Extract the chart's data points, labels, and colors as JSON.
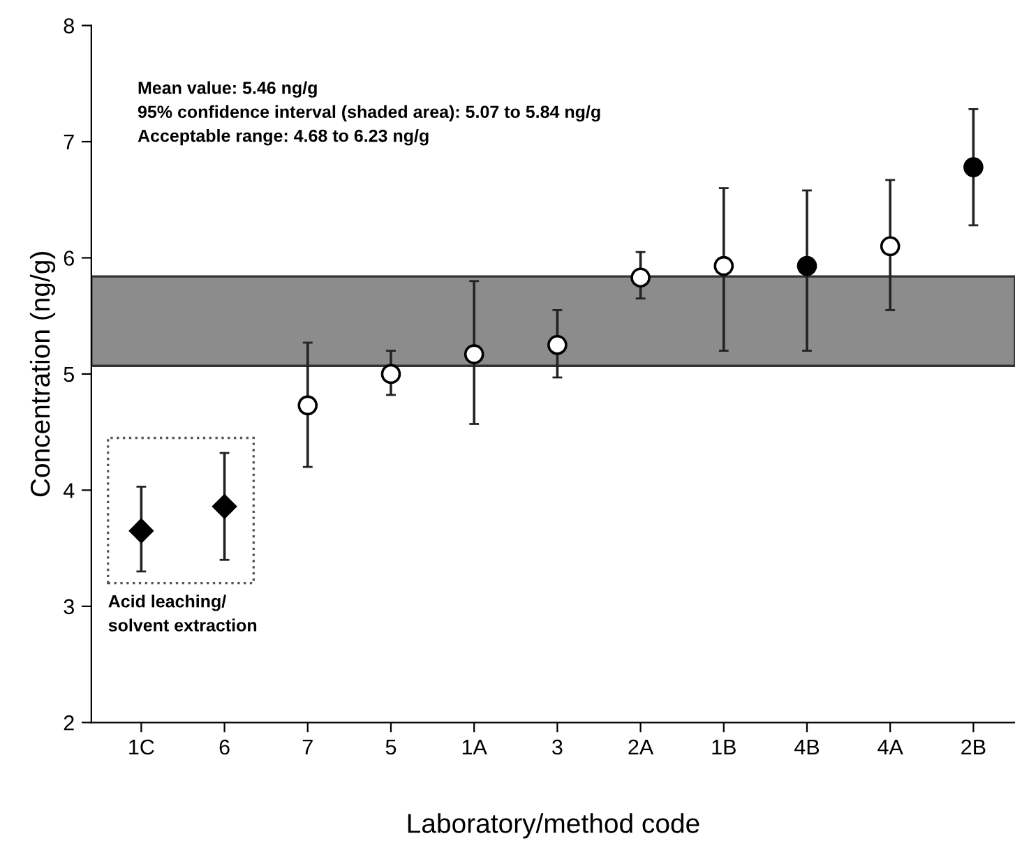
{
  "chart_data": {
    "type": "scatter",
    "xlabel": "Laboratory/method code",
    "ylabel": "Concentration (ng/g)",
    "categories": [
      "1C",
      "6",
      "7",
      "5",
      "1A",
      "3",
      "2A",
      "1B",
      "4B",
      "4A",
      "2B"
    ],
    "series": [
      {
        "marker": "diamond",
        "color": "#000000",
        "values": [
          3.65,
          3.86,
          null,
          null,
          null,
          null,
          null,
          null,
          null,
          null,
          null
        ],
        "errors": [
          [
            3.3,
            4.03
          ],
          [
            3.4,
            4.32
          ],
          null,
          null,
          null,
          null,
          null,
          null,
          null,
          null,
          null
        ]
      },
      {
        "marker": "circle",
        "color": "#000000",
        "colors": [
          "#ffffff",
          "#ffffff",
          "#ffffff",
          "#ffffff",
          "#ffffff",
          "#ffffff",
          "#ffffff",
          "#ffffff",
          "#000000",
          "#ffffff",
          "#000000"
        ],
        "values": [
          null,
          null,
          4.73,
          5.0,
          5.17,
          5.25,
          5.83,
          5.93,
          5.93,
          6.1,
          6.78
        ],
        "errors": [
          null,
          null,
          [
            4.2,
            5.27
          ],
          [
            4.82,
            5.2
          ],
          [
            4.57,
            5.8
          ],
          [
            4.97,
            5.55
          ],
          [
            5.65,
            6.05
          ],
          [
            5.2,
            6.6
          ],
          [
            5.2,
            6.58
          ],
          [
            5.55,
            6.67
          ],
          [
            6.28,
            7.28
          ]
        ]
      }
    ],
    "bands": [
      {
        "axis": "y",
        "from": 5.07,
        "to": 5.84,
        "color": "#8c8c8c"
      }
    ],
    "ylim": [
      2,
      8
    ],
    "yticks": [
      2,
      3,
      4,
      5,
      6,
      7,
      8
    ],
    "grid": false,
    "legend": false,
    "annotations": [
      "Mean value: 5.46 ng/g\n95% confidence interval (shaded area): 5.07 to 5.84 ng/g\nAcceptable range: 4.68 to 6.23 ng/g",
      "Acid leaching/\nsolvent extraction"
    ]
  }
}
